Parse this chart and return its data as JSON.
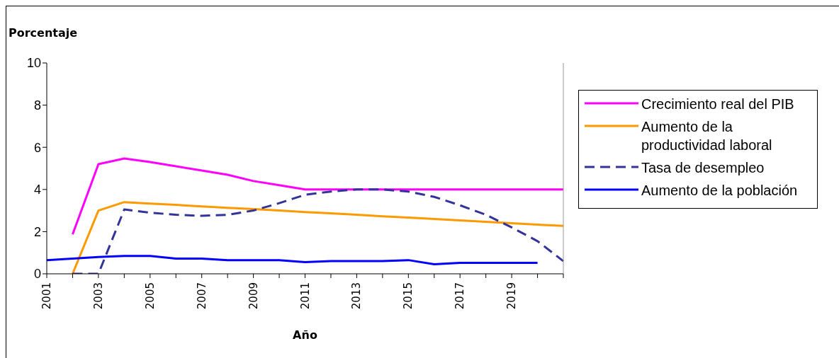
{
  "chart_data": {
    "type": "line",
    "ylabel": "Porcentaje",
    "xlabel": "Año",
    "categories": [
      "2001",
      null,
      "2003",
      null,
      "2005",
      null,
      "2007",
      null,
      "2009",
      null,
      "2011",
      null,
      "2013",
      null,
      "2015",
      null,
      "2017",
      null,
      "2019",
      null,
      null
    ],
    "ylim": [
      0,
      10
    ],
    "yticks": [
      0,
      2,
      4,
      6,
      8,
      10
    ],
    "grid": false,
    "legend": "right",
    "marker": "none",
    "series": [
      {
        "name": "Crecimiento real del PIB",
        "color": "#ff00ff",
        "values": [
          null,
          1.87,
          5.2,
          5.47,
          5.3,
          5.1,
          4.9,
          4.7,
          4.4,
          4.2,
          4.0,
          4.0,
          4.0,
          4.0,
          4.0,
          4.0,
          4.0,
          4.0,
          4.0,
          4.0,
          4.0
        ]
      },
      {
        "name": "Aumento de la productividad laboral",
        "color": "#ff9900",
        "values": [
          null,
          0,
          3.0,
          3.4,
          3.33,
          3.27,
          3.2,
          3.13,
          3.07,
          3.0,
          2.93,
          2.87,
          2.8,
          2.73,
          2.67,
          2.6,
          2.53,
          2.47,
          2.4,
          2.33,
          2.27
        ]
      },
      {
        "name": "Tasa de desempleo",
        "color": "#333399",
        "line_style": "dashed",
        "values": [
          null,
          0,
          0,
          3.05,
          2.9,
          2.8,
          2.75,
          2.8,
          3.0,
          3.35,
          3.75,
          3.9,
          4.0,
          4.0,
          3.9,
          3.65,
          3.25,
          2.8,
          2.2,
          1.55,
          0.6
        ]
      },
      {
        "name": "Aumento de la población",
        "color": "#0000ff",
        "values": [
          0.65,
          0.72,
          0.8,
          0.85,
          0.85,
          0.72,
          0.72,
          0.65,
          0.65,
          0.65,
          0.55,
          0.6,
          0.6,
          0.6,
          0.65,
          0.45,
          0.52,
          0.52,
          0.52,
          0.52,
          null
        ]
      }
    ]
  }
}
